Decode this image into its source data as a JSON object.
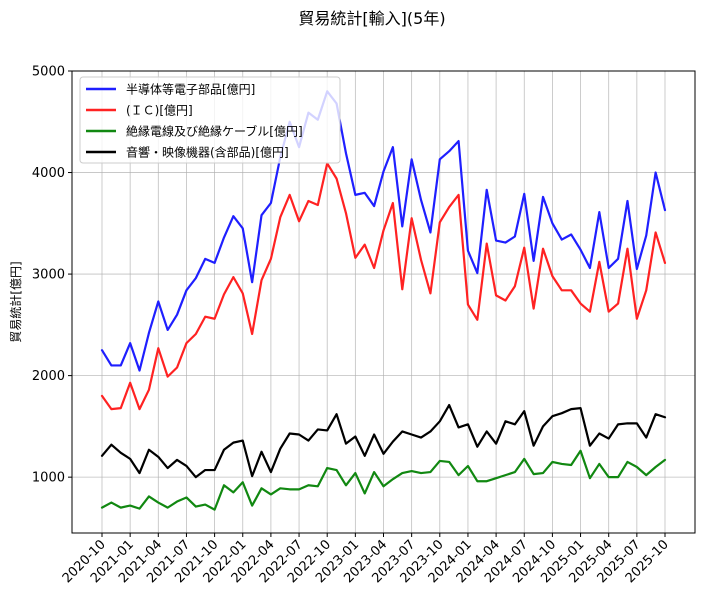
{
  "chart_data": {
    "type": "line",
    "title": "貿易統計[輸入](5年)",
    "xlabel": "",
    "ylabel": "貿易統計[億円]",
    "ylim": [
      450,
      5000
    ],
    "yticks": [
      1000,
      2000,
      3000,
      4000,
      5000
    ],
    "grid": true,
    "legend_position": "top-left",
    "xtick_labels": [
      "2020-10",
      "2021-01",
      "2021-04",
      "2021-07",
      "2021-10",
      "2022-01",
      "2022-04",
      "2022-07",
      "2022-10",
      "2023-01",
      "2023-04",
      "2023-07",
      "2023-10",
      "2024-01",
      "2024-04",
      "2024-07",
      "2024-10",
      "2025-01",
      "2025-04",
      "2025-07",
      "2025-10"
    ],
    "x": [
      "2020-10",
      "2020-11",
      "2020-12",
      "2021-01",
      "2021-02",
      "2021-03",
      "2021-04",
      "2021-05",
      "2021-06",
      "2021-07",
      "2021-08",
      "2021-09",
      "2021-10",
      "2021-11",
      "2021-12",
      "2022-01",
      "2022-02",
      "2022-03",
      "2022-04",
      "2022-05",
      "2022-06",
      "2022-07",
      "2022-08",
      "2022-09",
      "2022-10",
      "2022-11",
      "2022-12",
      "2023-01",
      "2023-02",
      "2023-03",
      "2023-04",
      "2023-05",
      "2023-06",
      "2023-07",
      "2023-08",
      "2023-09",
      "2023-10",
      "2023-11",
      "2023-12",
      "2024-01",
      "2024-02",
      "2024-03",
      "2024-04",
      "2024-05",
      "2024-06",
      "2024-07",
      "2024-08",
      "2024-09",
      "2024-10",
      "2024-11",
      "2024-12",
      "2025-01",
      "2025-02",
      "2025-03",
      "2025-04",
      "2025-05",
      "2025-06",
      "2025-07",
      "2025-08",
      "2025-09",
      "2025-10"
    ],
    "series": [
      {
        "name": "半導体等電子部品[億円]",
        "color": "#1f1fff",
        "values": [
          2250,
          2100,
          2100,
          2320,
          2050,
          2420,
          2730,
          2450,
          2600,
          2840,
          2960,
          3150,
          3110,
          3360,
          3570,
          3450,
          2920,
          3580,
          3700,
          4150,
          4500,
          4250,
          4590,
          4520,
          4800,
          4680,
          4190,
          3780,
          3800,
          3670,
          4010,
          4250,
          3470,
          4130,
          3730,
          3410,
          4130,
          4210,
          4310,
          3230,
          3010,
          3830,
          3330,
          3310,
          3370,
          3790,
          3130,
          3760,
          3500,
          3340,
          3390,
          3240,
          3060,
          3610,
          3060,
          3150,
          3720,
          3050,
          3380,
          4000,
          3630
        ]
      },
      {
        "name": "(ＩＣ)[億円]",
        "color": "#ff2222",
        "values": [
          1800,
          1670,
          1680,
          1930,
          1670,
          1860,
          2270,
          1990,
          2080,
          2320,
          2410,
          2580,
          2560,
          2800,
          2970,
          2810,
          2410,
          2940,
          3150,
          3560,
          3780,
          3520,
          3720,
          3680,
          4090,
          3940,
          3600,
          3160,
          3290,
          3060,
          3430,
          3700,
          2850,
          3550,
          3140,
          2810,
          3510,
          3660,
          3780,
          2700,
          2550,
          3300,
          2790,
          2740,
          2880,
          3260,
          2660,
          3250,
          2980,
          2840,
          2840,
          2710,
          2630,
          3120,
          2630,
          2710,
          3250,
          2560,
          2840,
          3410,
          3110
        ]
      },
      {
        "name": "絶縁電線及び絶縁ケーブル[億円]",
        "color": "#118811",
        "values": [
          700,
          750,
          700,
          720,
          690,
          810,
          750,
          700,
          760,
          800,
          710,
          730,
          680,
          920,
          850,
          950,
          720,
          890,
          830,
          890,
          880,
          880,
          920,
          910,
          1090,
          1070,
          920,
          1040,
          840,
          1050,
          910,
          980,
          1040,
          1060,
          1040,
          1050,
          1160,
          1150,
          1020,
          1110,
          960,
          960,
          990,
          1020,
          1050,
          1180,
          1030,
          1040,
          1150,
          1130,
          1120,
          1260,
          990,
          1130,
          1000,
          1000,
          1150,
          1100,
          1020,
          1100,
          1170
        ]
      },
      {
        "name": "音響・映像機器(含部品)[億円]",
        "color": "#000000",
        "values": [
          1210,
          1320,
          1240,
          1180,
          1040,
          1270,
          1200,
          1090,
          1170,
          1110,
          1000,
          1070,
          1070,
          1270,
          1340,
          1360,
          1010,
          1250,
          1050,
          1280,
          1430,
          1420,
          1360,
          1470,
          1460,
          1620,
          1330,
          1400,
          1210,
          1420,
          1230,
          1350,
          1450,
          1420,
          1390,
          1450,
          1550,
          1710,
          1490,
          1520,
          1300,
          1450,
          1330,
          1550,
          1520,
          1650,
          1310,
          1500,
          1600,
          1630,
          1670,
          1680,
          1310,
          1430,
          1380,
          1520,
          1530,
          1530,
          1390,
          1620,
          1590
        ]
      }
    ]
  }
}
